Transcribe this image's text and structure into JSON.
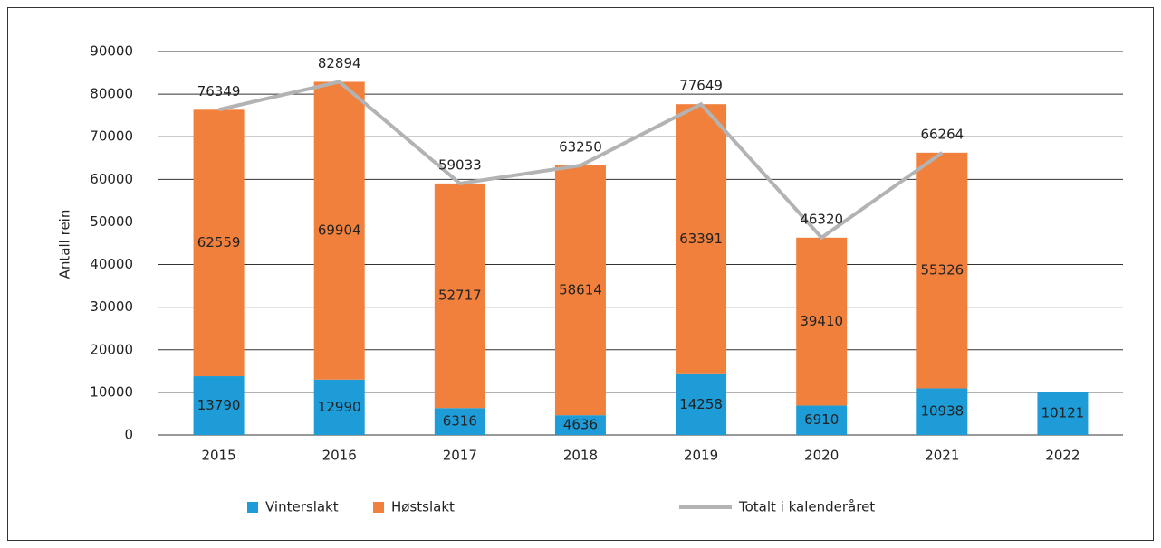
{
  "chart_data": {
    "type": "stacked-bar-line",
    "y_label": "Antall rein",
    "categories": [
      "2015",
      "2016",
      "2017",
      "2018",
      "2019",
      "2020",
      "2021",
      "2022"
    ],
    "series": [
      {
        "name": "Vinterslakt",
        "color": "#1d9cd8",
        "kind": "bar",
        "values": [
          13790,
          12990,
          6316,
          4636,
          14258,
          6910,
          10938,
          10121
        ]
      },
      {
        "name": "Høstslakt",
        "color": "#f0803c",
        "kind": "bar",
        "values": [
          62559,
          69904,
          52717,
          58614,
          63391,
          39410,
          55326,
          null
        ]
      },
      {
        "name": "Totalt i kalenderåret",
        "color": "#b3b3b3",
        "kind": "line",
        "values": [
          76349,
          82894,
          59033,
          63250,
          77649,
          46320,
          66264,
          null
        ]
      }
    ],
    "ylim": [
      0,
      90000
    ],
    "yticks": [
      0,
      10000,
      20000,
      30000,
      40000,
      50000,
      60000,
      70000,
      80000,
      90000
    ],
    "grid": true,
    "legend": "bottom"
  }
}
